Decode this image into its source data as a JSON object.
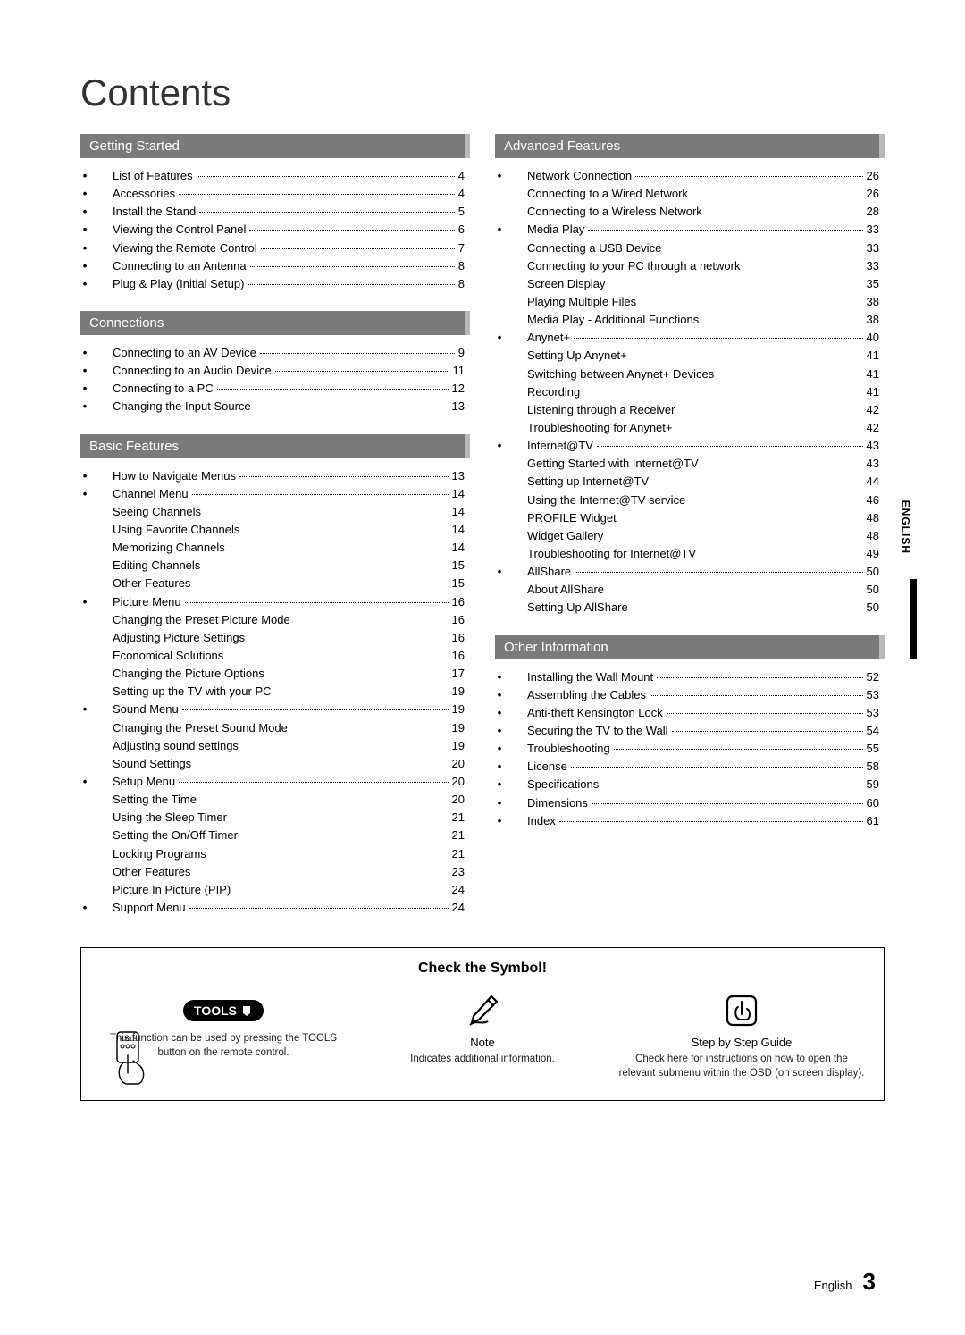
{
  "title": "Contents",
  "side_tab": "ENGLISH",
  "footer": {
    "lang": "English",
    "page_number": "3"
  },
  "sections_left": [
    {
      "header": "Getting Started",
      "items": [
        {
          "t": "main",
          "label": "List of Features",
          "page": "4"
        },
        {
          "t": "main",
          "label": "Accessories",
          "page": "4"
        },
        {
          "t": "main",
          "label": "Install the Stand",
          "page": "5"
        },
        {
          "t": "main",
          "label": "Viewing the Control Panel",
          "page": "6"
        },
        {
          "t": "main",
          "label": "Viewing the Remote Control",
          "page": "7"
        },
        {
          "t": "main",
          "label": "Connecting to an Antenna",
          "page": "8"
        },
        {
          "t": "main",
          "label": "Plug & Play (Initial Setup)",
          "page": "8"
        }
      ]
    },
    {
      "header": "Connections",
      "items": [
        {
          "t": "main",
          "label": "Connecting to an AV Device",
          "page": "9"
        },
        {
          "t": "main",
          "label": "Connecting to an Audio Device",
          "page": "11"
        },
        {
          "t": "main",
          "label": "Connecting to a PC",
          "page": "12"
        },
        {
          "t": "main",
          "label": "Changing the Input Source",
          "page": "13"
        }
      ]
    },
    {
      "header": "Basic Features",
      "items": [
        {
          "t": "main",
          "label": "How to Navigate Menus",
          "page": "13"
        },
        {
          "t": "main",
          "label": "Channel Menu",
          "page": "14"
        },
        {
          "t": "sub",
          "label": "Seeing Channels",
          "page": "14"
        },
        {
          "t": "sub",
          "label": "Using Favorite Channels",
          "page": "14"
        },
        {
          "t": "sub",
          "label": "Memorizing Channels",
          "page": "14"
        },
        {
          "t": "sub",
          "label": "Editing Channels",
          "page": "15"
        },
        {
          "t": "sub",
          "label": "Other Features",
          "page": "15"
        },
        {
          "t": "main",
          "label": "Picture Menu",
          "page": "16"
        },
        {
          "t": "sub",
          "label": "Changing the Preset Picture Mode",
          "page": "16"
        },
        {
          "t": "sub",
          "label": "Adjusting Picture Settings",
          "page": "16"
        },
        {
          "t": "sub",
          "label": "Economical Solutions",
          "page": "16"
        },
        {
          "t": "sub",
          "label": "Changing the Picture Options",
          "page": "17"
        },
        {
          "t": "sub",
          "label": "Setting up the TV with your PC",
          "page": "19"
        },
        {
          "t": "main",
          "label": "Sound Menu",
          "page": "19"
        },
        {
          "t": "sub",
          "label": "Changing the Preset Sound Mode",
          "page": "19"
        },
        {
          "t": "sub",
          "label": "Adjusting sound settings",
          "page": "19"
        },
        {
          "t": "sub",
          "label": "Sound Settings",
          "page": "20"
        },
        {
          "t": "main",
          "label": "Setup Menu",
          "page": "20"
        },
        {
          "t": "sub",
          "label": "Setting the Time",
          "page": "20"
        },
        {
          "t": "sub",
          "label": "Using the Sleep Timer",
          "page": "21"
        },
        {
          "t": "sub",
          "label": "Setting the On/Off Timer",
          "page": "21"
        },
        {
          "t": "sub",
          "label": "Locking Programs",
          "page": "21"
        },
        {
          "t": "sub",
          "label": "Other Features",
          "page": "23"
        },
        {
          "t": "sub",
          "label": "Picture In Picture (PIP)",
          "page": "24"
        },
        {
          "t": "main",
          "label": "Support Menu",
          "page": "24"
        }
      ]
    }
  ],
  "sections_right": [
    {
      "header": "Advanced Features",
      "items": [
        {
          "t": "main",
          "label": "Network Connection",
          "page": "26"
        },
        {
          "t": "sub",
          "label": "Connecting to a Wired Network",
          "page": "26"
        },
        {
          "t": "sub",
          "label": "Connecting to a Wireless Network",
          "page": "28"
        },
        {
          "t": "main",
          "label": "Media Play",
          "page": "33"
        },
        {
          "t": "sub",
          "label": "Connecting a USB Device",
          "page": "33"
        },
        {
          "t": "sub",
          "label": "Connecting to your PC through a network",
          "page": "33"
        },
        {
          "t": "sub",
          "label": "Screen Display",
          "page": "35"
        },
        {
          "t": "sub",
          "label": "Playing Multiple Files",
          "page": "38"
        },
        {
          "t": "sub",
          "label": "Media Play - Additional Functions",
          "page": "38"
        },
        {
          "t": "main",
          "label": "Anynet+",
          "page": "40"
        },
        {
          "t": "sub",
          "label": "Setting Up Anynet+",
          "page": "41"
        },
        {
          "t": "sub",
          "label": "Switching between Anynet+ Devices",
          "page": "41"
        },
        {
          "t": "sub",
          "label": "Recording",
          "page": "41"
        },
        {
          "t": "sub",
          "label": "Listening through a Receiver",
          "page": "42"
        },
        {
          "t": "sub",
          "label": "Troubleshooting for Anynet+",
          "page": "42"
        },
        {
          "t": "main",
          "label": "Internet@TV",
          "page": "43"
        },
        {
          "t": "sub",
          "label": "Getting Started with Internet@TV",
          "page": "43"
        },
        {
          "t": "sub",
          "label": "Setting up Internet@TV",
          "page": "44"
        },
        {
          "t": "sub",
          "label": "Using the Internet@TV service",
          "page": "46"
        },
        {
          "t": "sub",
          "label": "PROFILE Widget",
          "page": "48"
        },
        {
          "t": "sub",
          "label": "Widget Gallery",
          "page": "48"
        },
        {
          "t": "sub",
          "label": "Troubleshooting for Internet@TV",
          "page": "49"
        },
        {
          "t": "main",
          "label": "AllShare",
          "page": "50"
        },
        {
          "t": "sub",
          "label": "About AllShare",
          "page": "50"
        },
        {
          "t": "sub",
          "label": "Setting Up AllShare",
          "page": "50"
        }
      ]
    },
    {
      "header": "Other Information",
      "items": [
        {
          "t": "main",
          "label": "Installing the Wall Mount",
          "page": "52"
        },
        {
          "t": "main",
          "label": "Assembling the Cables",
          "page": "53"
        },
        {
          "t": "main",
          "label": "Anti-theft Kensington Lock",
          "page": "53"
        },
        {
          "t": "main",
          "label": "Securing the TV to the Wall",
          "page": "54"
        },
        {
          "t": "main",
          "label": "Troubleshooting",
          "page": "55"
        },
        {
          "t": "main",
          "label": "License",
          "page": "58"
        },
        {
          "t": "main",
          "label": "Specifications",
          "page": "59"
        },
        {
          "t": "main",
          "label": "Dimensions",
          "page": "60"
        },
        {
          "t": "main",
          "label": "Index",
          "page": "61"
        }
      ]
    }
  ],
  "symbol_box": {
    "title": "Check the Symbol!",
    "cells": [
      {
        "icon": "tools",
        "badge_text": "TOOLS",
        "sub": "",
        "desc": "This function can be used by pressing the TOOLS button on the remote control."
      },
      {
        "icon": "note",
        "sub": "Note",
        "desc": "Indicates additional information."
      },
      {
        "icon": "step",
        "sub": "Step by Step Guide",
        "desc": "Check here for instructions on how to open the relevant submenu within the OSD (on screen display)."
      }
    ],
    "remote_label": "TOOLS"
  }
}
